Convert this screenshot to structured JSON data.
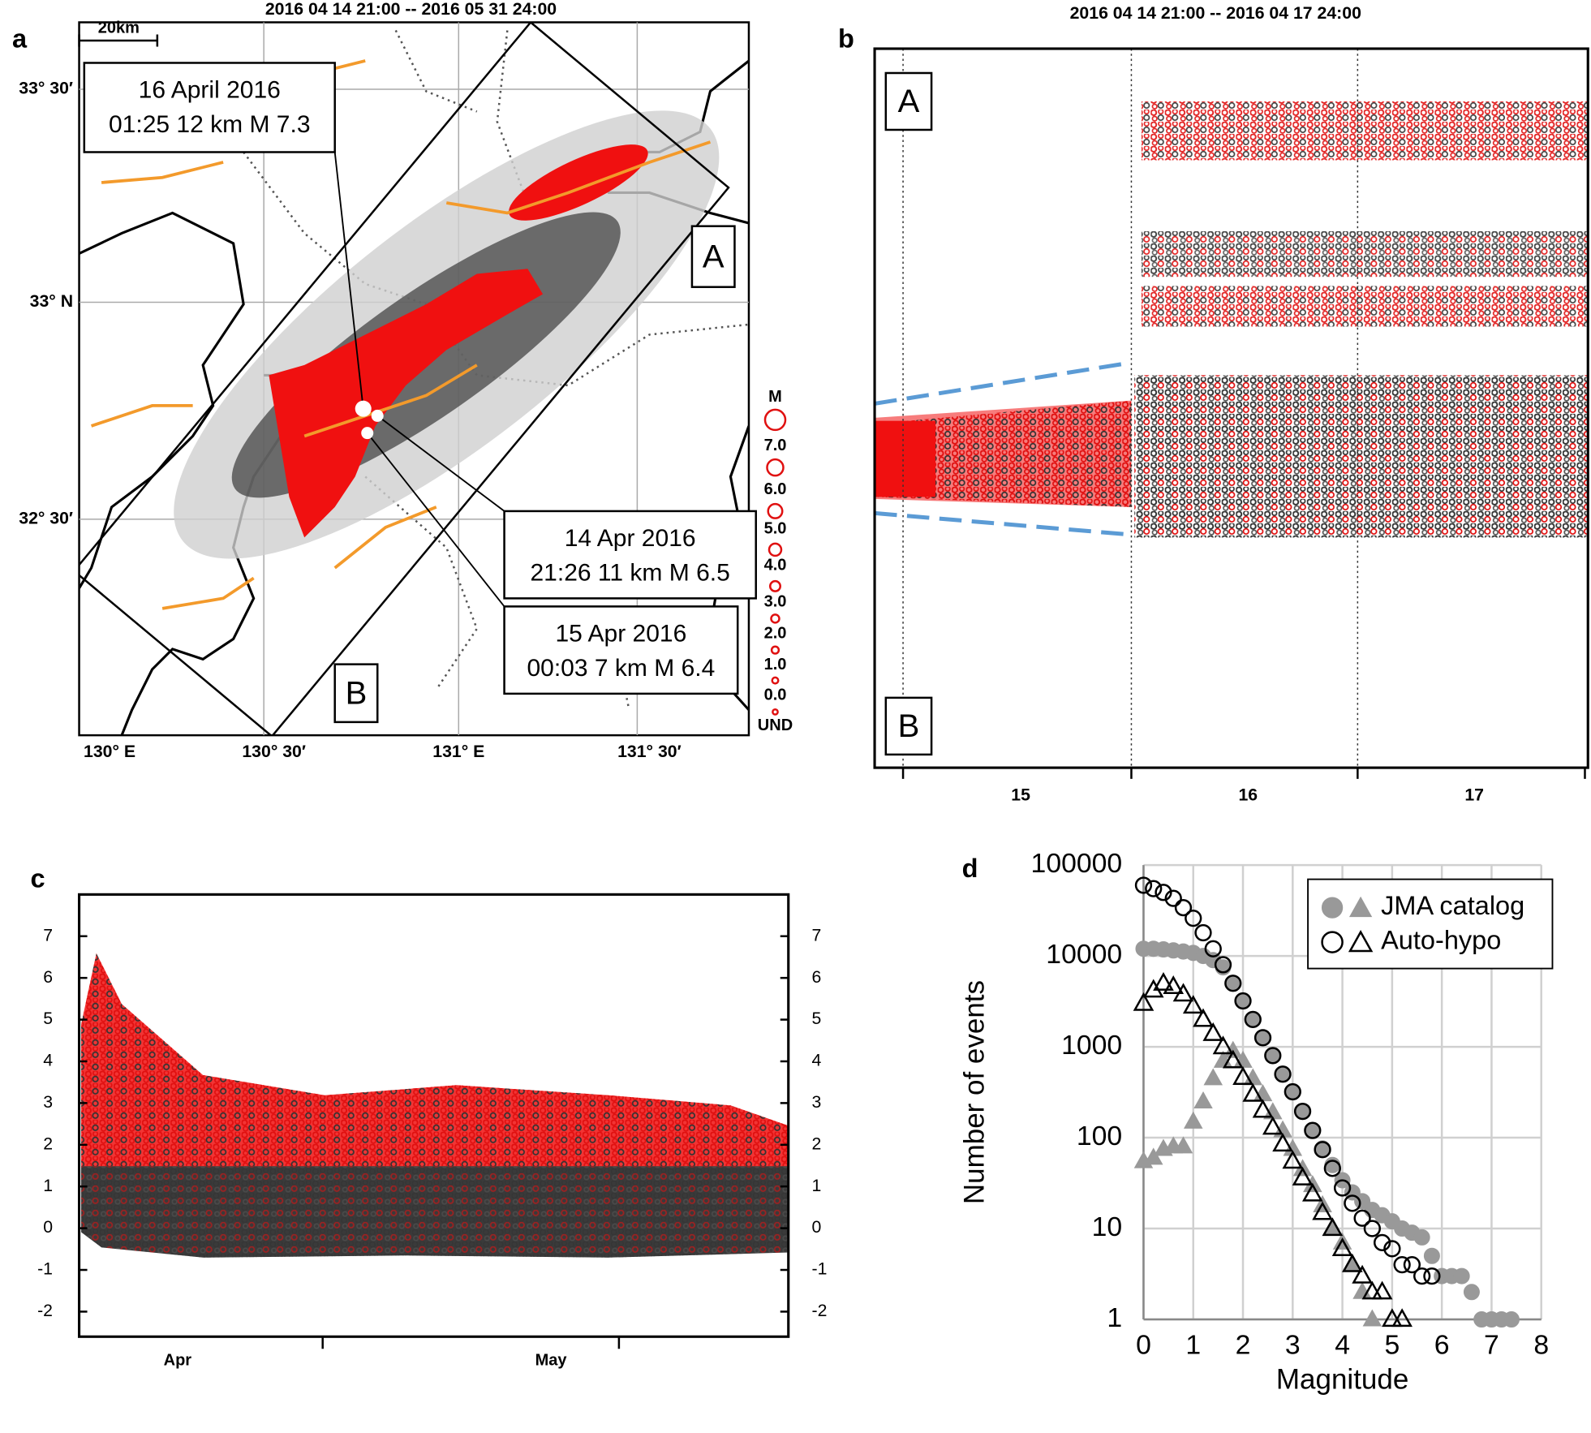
{
  "chart_data": [
    {
      "type": "map",
      "panel": "a",
      "title": "2016 04 14 21:00  --  2016 05 31 24:00",
      "scale_label": "20km",
      "lat_labels": [
        "33° 30′",
        "33° N",
        "32° 30′"
      ],
      "lon_labels": [
        "130° E",
        "130° 30′",
        "131° E",
        "131° 30′"
      ],
      "annotations": [
        {
          "lines": [
            "16 April 2016",
            "01:25 12 km M 7.3"
          ]
        },
        {
          "lines": [
            "14 Apr 2016",
            "21:26 11 km M 6.5"
          ]
        },
        {
          "lines": [
            "15 Apr 2016",
            "00:03 7 km M 6.4"
          ]
        }
      ],
      "region_labels": [
        "A",
        "B"
      ],
      "legend_title": "M",
      "legend_labels": [
        "7.0",
        "6.0",
        "5.0",
        "4.0",
        "3.0",
        "2.0",
        "1.0",
        "0.0",
        "UND"
      ]
    },
    {
      "type": "timeline",
      "panel": "b",
      "title": "2016 04 14 21:00  --  2016 04 17 24:00",
      "region_labels": [
        "A",
        "B"
      ],
      "categories": [
        "15",
        "16",
        "17"
      ]
    },
    {
      "type": "magnitude-time",
      "panel": "c",
      "categories": [
        "Apr",
        "May"
      ],
      "ylim": [
        -2.6,
        8
      ],
      "yticks": [
        -2,
        -1,
        0,
        1,
        2,
        3,
        4,
        5,
        6,
        7
      ]
    },
    {
      "type": "scatter",
      "panel": "d",
      "xlabel": "Magnitude",
      "ylabel": "Number of events",
      "log_y": true,
      "grid": true,
      "legend": "upper right",
      "xlim": [
        0,
        8
      ],
      "xticks": [
        0,
        1,
        2,
        3,
        4,
        5,
        6,
        7,
        8
      ],
      "ylim": [
        1,
        100000
      ],
      "yticks": [
        1,
        10,
        100,
        1000,
        10000,
        100000
      ],
      "x": [
        0,
        0.2,
        0.4,
        0.6,
        0.8,
        1.0,
        1.2,
        1.4,
        1.6,
        1.8,
        2.0,
        2.2,
        2.4,
        2.6,
        2.8,
        3.0,
        3.2,
        3.4,
        3.6,
        3.8,
        4.0,
        4.2,
        4.4,
        4.6,
        4.8,
        5.0,
        5.2,
        5.4,
        5.6,
        5.8,
        6.0,
        6.2,
        6.4,
        6.6,
        6.8,
        7.0,
        7.2,
        7.4
      ],
      "series": [
        {
          "name": "JMA catalog",
          "color": "#999999",
          "filled": true,
          "values": [
            12000,
            12000,
            11800,
            11500,
            11200,
            10800,
            10000,
            9000,
            7500,
            5000,
            3200,
            2000,
            1260,
            800,
            500,
            320,
            195,
            120,
            76,
            50,
            34,
            25,
            20,
            16,
            14,
            12,
            10,
            9,
            8,
            5,
            3,
            3,
            3,
            2,
            1,
            1,
            1,
            1
          ],
          "counts": [
            55,
            60,
            75,
            80,
            80,
            150,
            250,
            450,
            700,
            900,
            700,
            450,
            300,
            190,
            120,
            75,
            45,
            30,
            18,
            10,
            7,
            4,
            2,
            1,
            null,
            null,
            null,
            null,
            null,
            null,
            null,
            null,
            null,
            null,
            null,
            null,
            null,
            null
          ]
        },
        {
          "name": "Auto-hypo",
          "color": "#000000",
          "filled": false,
          "values": [
            60000,
            55000,
            50000,
            43000,
            34000,
            26000,
            18000,
            12000,
            8000,
            5000,
            3200,
            2000,
            1260,
            800,
            500,
            320,
            195,
            120,
            74,
            46,
            28,
            19,
            13,
            10,
            7,
            6,
            4,
            4,
            3,
            3,
            null,
            null,
            null,
            null,
            null,
            null,
            null,
            null
          ],
          "counts": [
            3000,
            4200,
            5000,
            4600,
            3800,
            2800,
            2000,
            1400,
            1000,
            700,
            460,
            300,
            200,
            130,
            85,
            55,
            36,
            24,
            15,
            10,
            6,
            4,
            3,
            2,
            2,
            1,
            1,
            null,
            null,
            null,
            null,
            null,
            null,
            null,
            null,
            null,
            null,
            null
          ]
        }
      ]
    }
  ]
}
